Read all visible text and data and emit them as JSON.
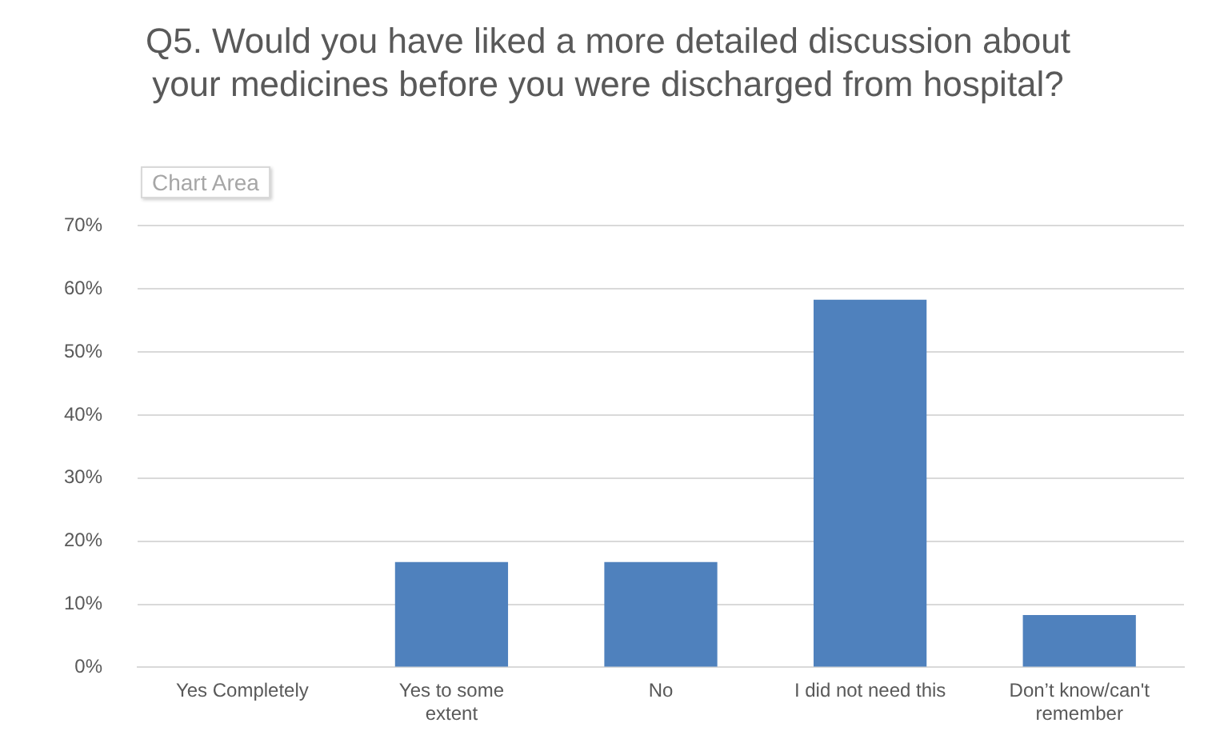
{
  "chart_data": {
    "type": "bar",
    "title": "Q5. Would you have liked a more detailed discussion about your medicines before you were discharged from hospital?",
    "categories": [
      "Yes Completely",
      "Yes to some extent",
      "No",
      "I did not need this",
      "Don’t know/can't remember"
    ],
    "values": [
      0,
      16.7,
      16.7,
      58.3,
      8.3
    ],
    "color": "#4f81bd",
    "ylim": [
      0,
      70
    ],
    "yticks": [
      {
        "value": 0,
        "label": "0%"
      },
      {
        "value": 10,
        "label": "10%"
      },
      {
        "value": 20,
        "label": "20%"
      },
      {
        "value": 30,
        "label": "30%"
      },
      {
        "value": 40,
        "label": "40%"
      },
      {
        "value": 50,
        "label": "50%"
      },
      {
        "value": 60,
        "label": "60%"
      },
      {
        "value": 70,
        "label": "70%"
      }
    ],
    "grid": "y",
    "legend": false,
    "annotations": [
      "Chart Area"
    ]
  }
}
